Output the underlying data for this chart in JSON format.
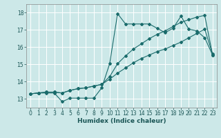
{
  "title": "",
  "xlabel": "Humidex (Indice chaleur)",
  "ylabel": "",
  "bg_color": "#cce8e8",
  "grid_color": "#ffffff",
  "line_color": "#1a6b6b",
  "xlim": [
    -0.5,
    23.5
  ],
  "ylim": [
    12.5,
    18.5
  ],
  "xticks": [
    0,
    1,
    2,
    3,
    4,
    5,
    6,
    7,
    8,
    9,
    10,
    11,
    12,
    13,
    14,
    15,
    16,
    17,
    18,
    19,
    20,
    21,
    22,
    23
  ],
  "yticks": [
    13,
    14,
    15,
    16,
    17,
    18
  ],
  "line1_x": [
    0,
    1,
    2,
    3,
    4,
    5,
    6,
    7,
    8,
    9,
    10,
    11,
    12,
    13,
    14,
    15,
    16,
    17,
    18,
    19,
    20,
    21,
    22,
    23
  ],
  "line1_y": [
    13.3,
    13.35,
    13.35,
    13.35,
    12.85,
    13.05,
    13.05,
    13.05,
    13.05,
    13.65,
    15.05,
    17.95,
    17.35,
    17.35,
    17.35,
    17.35,
    17.1,
    16.85,
    17.1,
    17.8,
    17.05,
    16.95,
    16.55,
    15.55
  ],
  "line2_x": [
    0,
    1,
    2,
    3,
    4,
    5,
    6,
    7,
    8,
    9,
    10,
    11,
    12,
    13,
    14,
    15,
    16,
    17,
    18,
    19,
    20,
    21,
    22,
    23
  ],
  "line2_y": [
    13.3,
    13.35,
    13.4,
    13.4,
    13.35,
    13.5,
    13.6,
    13.65,
    13.75,
    13.85,
    14.15,
    14.5,
    14.8,
    15.1,
    15.35,
    15.55,
    15.75,
    15.9,
    16.1,
    16.3,
    16.55,
    16.8,
    17.05,
    15.6
  ],
  "line3_x": [
    0,
    1,
    2,
    3,
    4,
    5,
    6,
    7,
    8,
    9,
    10,
    11,
    12,
    13,
    14,
    15,
    16,
    17,
    18,
    19,
    20,
    21,
    22,
    23
  ],
  "line3_y": [
    13.3,
    13.35,
    13.4,
    13.4,
    13.35,
    13.5,
    13.6,
    13.65,
    13.75,
    13.85,
    14.3,
    15.05,
    15.5,
    15.9,
    16.2,
    16.5,
    16.75,
    16.95,
    17.2,
    17.45,
    17.6,
    17.75,
    17.85,
    15.55
  ],
  "marker_size": 2.0,
  "line_width": 0.8,
  "tick_fontsize": 5.5,
  "xlabel_fontsize": 6.5
}
